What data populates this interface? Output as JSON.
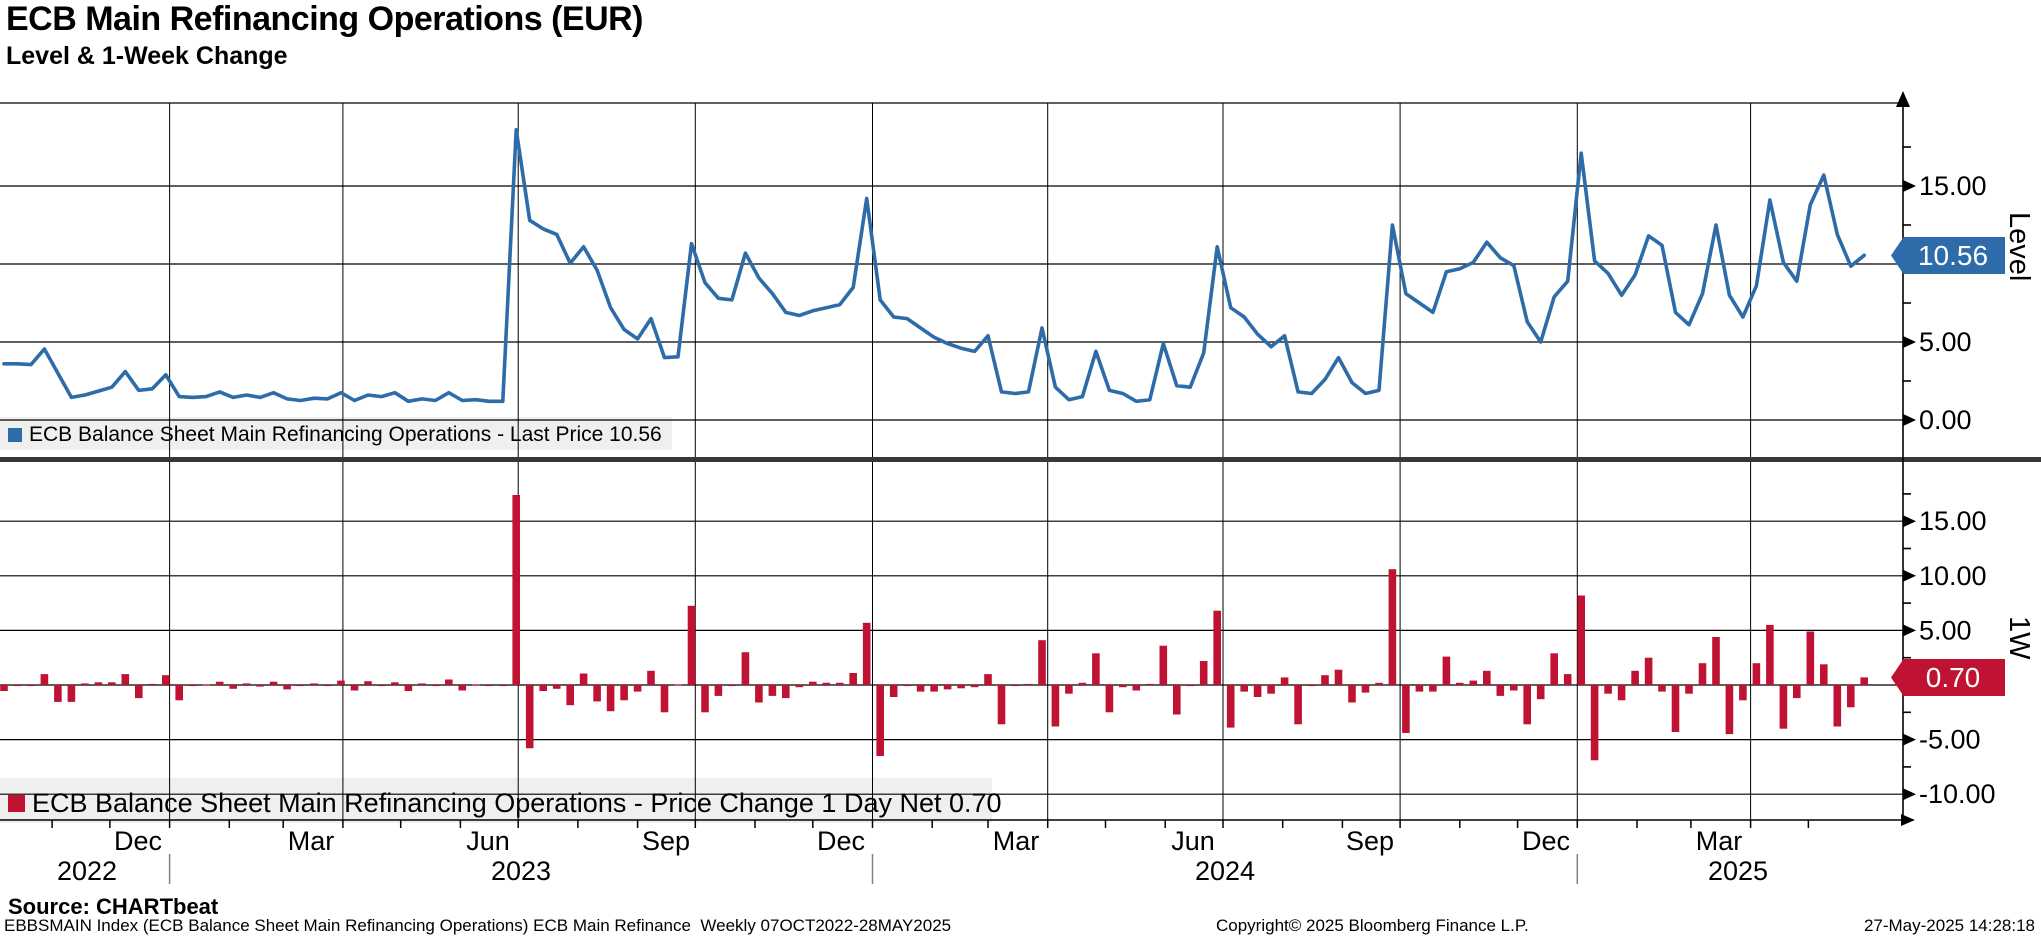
{
  "header": {
    "title": "ECB Main Refinancing Operations (EUR)",
    "subtitle": "Level & 1-Week Change"
  },
  "source_line": "Source: CHARTbeat",
  "footer": {
    "left": "EBBSMAIN Index (ECB Balance Sheet Main Refinancing Operations) ECB Main Refinance  Weekly 07OCT2022-28MAY2025",
    "center": "Copyright© 2025 Bloomberg Finance L.P.",
    "right": "27-May-2025 14:28:18"
  },
  "colors": {
    "line": "#2d6ca8",
    "bar": "#c01334",
    "grid": "#000000",
    "minor_tick": "#000000",
    "legend_strip": "#efefed",
    "separator": "#383838",
    "year_divider": "#808080",
    "tag_level_bg": "#2d6ca8",
    "tag_change_bg": "#c01334",
    "tag_text": "#ffffff"
  },
  "x_axis": {
    "start_label": "07OCT2022",
    "end_label": "28MAY2025",
    "frequency": "Weekly",
    "month_tick_weeks": [
      3.571,
      7.857,
      12.286,
      16.714,
      20.714,
      25.143,
      29.429,
      33.857,
      38.143,
      42.571,
      47.0,
      51.286,
      55.714,
      60.0,
      64.429,
      68.857,
      73.0,
      77.429,
      81.714,
      86.143,
      90.429,
      94.857,
      99.286,
      103.571,
      108.0,
      112.286,
      116.714,
      121.143,
      125.143,
      129.571,
      133.857
    ],
    "month_labels": [
      {
        "week": 7.857,
        "label": "Dec"
      },
      {
        "week": 20.714,
        "label": "Mar"
      },
      {
        "week": 33.857,
        "label": "Jun"
      },
      {
        "week": 47.0,
        "label": "Sep"
      },
      {
        "week": 60.0,
        "label": "Dec"
      },
      {
        "week": 73.0,
        "label": "Mar"
      },
      {
        "week": 86.143,
        "label": "Jun"
      },
      {
        "week": 99.286,
        "label": "Sep"
      },
      {
        "week": 112.286,
        "label": "Dec"
      },
      {
        "week": 125.143,
        "label": "Mar"
      }
    ],
    "year_labels": [
      {
        "center_week": 6.14,
        "label": "2022"
      },
      {
        "center_week": 38.36,
        "label": "2023"
      },
      {
        "center_week": 90.57,
        "label": "2024"
      },
      {
        "center_week": 128.64,
        "label": "2025"
      }
    ],
    "year_divider_weeks": [
      12.286,
      64.429,
      116.714
    ],
    "quarter_gridline_weeks": [
      12.286,
      25.143,
      38.143,
      51.286,
      64.429,
      77.429,
      90.429,
      103.571,
      116.714,
      129.571
    ]
  },
  "chart_data": [
    {
      "type": "line",
      "panel": "top",
      "axis_title": "Level",
      "legend": "ECB Balance Sheet Main Refinancing Operations - Last Price 10.56",
      "last_value_tag": "10.56",
      "ylim": [
        -2.4,
        20.3
      ],
      "yticks": [
        {
          "v": 0,
          "label": "0.00"
        },
        {
          "v": 5,
          "label": "5.00"
        },
        {
          "v": 10,
          "label": "10.00"
        },
        {
          "v": 15,
          "label": "15.00"
        }
      ],
      "minor_tick_values": [
        2.5,
        7.5,
        12.5,
        17.5
      ],
      "values": [
        3.6,
        3.6,
        3.55,
        4.55,
        3.0,
        1.45,
        1.6,
        1.85,
        2.1,
        3.1,
        1.9,
        2.0,
        2.9,
        1.5,
        1.45,
        1.5,
        1.8,
        1.45,
        1.6,
        1.45,
        1.75,
        1.35,
        1.25,
        1.4,
        1.35,
        1.75,
        1.25,
        1.6,
        1.5,
        1.75,
        1.2,
        1.35,
        1.25,
        1.75,
        1.25,
        1.3,
        1.2,
        1.2,
        18.6,
        12.8,
        12.25,
        11.9,
        10.05,
        11.1,
        9.6,
        7.2,
        5.8,
        5.2,
        6.5,
        4.0,
        4.05,
        11.3,
        8.8,
        7.8,
        7.7,
        10.7,
        9.1,
        8.1,
        6.9,
        6.7,
        7.0,
        7.2,
        7.4,
        8.5,
        14.2,
        7.7,
        6.6,
        6.5,
        5.9,
        5.3,
        4.9,
        4.6,
        4.4,
        5.4,
        1.8,
        1.7,
        1.8,
        5.9,
        2.1,
        1.3,
        1.5,
        4.4,
        1.9,
        1.7,
        1.2,
        1.3,
        4.9,
        2.2,
        2.1,
        4.3,
        11.1,
        7.2,
        6.6,
        5.5,
        4.7,
        5.4,
        1.8,
        1.7,
        2.6,
        4.0,
        2.4,
        1.7,
        1.9,
        12.5,
        8.1,
        7.5,
        6.9,
        9.5,
        9.7,
        10.1,
        11.4,
        10.4,
        9.9,
        6.3,
        5.0,
        7.9,
        8.9,
        17.1,
        10.2,
        9.4,
        8.0,
        9.3,
        11.8,
        11.2,
        6.9,
        6.1,
        8.1,
        12.5,
        8.0,
        6.6,
        8.6,
        14.1,
        10.1,
        8.9,
        13.8,
        15.7,
        11.9,
        9.86,
        10.56
      ]
    },
    {
      "type": "bar",
      "panel": "bottom",
      "axis_title": "1W",
      "legend": "ECB Balance Sheet Main Refinancing Operations - Price Change 1 Day Net 0.70",
      "last_value_tag": "0.70",
      "ylim": [
        -12.4,
        20.4
      ],
      "yticks": [
        {
          "v": -10,
          "label": "-10.00"
        },
        {
          "v": -5,
          "label": "-5.00"
        },
        {
          "v": 0,
          "label": "0.00"
        },
        {
          "v": 5,
          "label": "5.00"
        },
        {
          "v": 10,
          "label": "10.00"
        },
        {
          "v": 15,
          "label": "15.00"
        }
      ],
      "minor_tick_values": [
        -7.5,
        -2.5,
        2.5,
        7.5,
        12.5,
        17.5
      ],
      "values": [
        -0.55,
        0.0,
        -0.05,
        1.0,
        -1.55,
        -1.55,
        0.15,
        0.25,
        0.25,
        1.0,
        -1.2,
        0.1,
        0.9,
        -1.4,
        -0.05,
        0.05,
        0.3,
        -0.35,
        0.15,
        -0.15,
        0.3,
        -0.4,
        -0.1,
        0.15,
        -0.05,
        0.4,
        -0.5,
        0.35,
        -0.1,
        0.25,
        -0.55,
        0.15,
        -0.1,
        0.5,
        -0.5,
        0.05,
        -0.1,
        0.0,
        17.4,
        -5.8,
        -0.55,
        -0.35,
        -1.85,
        1.05,
        -1.5,
        -2.4,
        -1.4,
        -0.6,
        1.3,
        -2.5,
        0.05,
        7.25,
        -2.5,
        -1.0,
        -0.1,
        3.0,
        -1.6,
        -1.0,
        -1.2,
        -0.2,
        0.3,
        0.2,
        0.2,
        1.1,
        5.7,
        -6.5,
        -1.1,
        -0.1,
        -0.6,
        -0.6,
        -0.4,
        -0.3,
        -0.2,
        1.0,
        -3.6,
        -0.1,
        0.1,
        4.1,
        -3.8,
        -0.8,
        0.2,
        2.9,
        -2.5,
        -0.2,
        -0.5,
        0.1,
        3.6,
        -2.7,
        -0.1,
        2.2,
        6.8,
        -3.9,
        -0.6,
        -1.1,
        -0.8,
        0.7,
        -3.6,
        -0.1,
        0.9,
        1.4,
        -1.6,
        -0.7,
        0.2,
        10.6,
        -4.4,
        -0.6,
        -0.6,
        2.6,
        0.2,
        0.4,
        1.3,
        -1.0,
        -0.5,
        -3.6,
        -1.3,
        2.9,
        1.0,
        8.2,
        -6.9,
        -0.8,
        -1.4,
        1.3,
        2.5,
        -0.6,
        -4.3,
        -0.8,
        2.0,
        4.4,
        -4.5,
        -1.4,
        2.0,
        5.5,
        -4.0,
        -1.2,
        4.9,
        1.9,
        -3.8,
        -2.04,
        0.7
      ]
    }
  ]
}
